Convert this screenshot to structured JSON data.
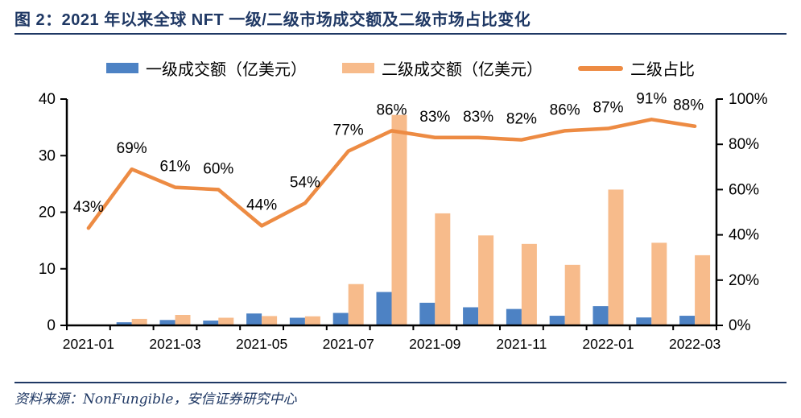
{
  "header": {
    "title": "图 2：2021 年以来全球 NFT 一级/二级市场成交额及二级市场占比变化"
  },
  "legend": {
    "items": [
      {
        "label": "一级成交额（亿美元）",
        "type": "bar",
        "color": "#4D82C4"
      },
      {
        "label": "二级成交额（亿美元）",
        "type": "bar",
        "color": "#F7BB8B"
      },
      {
        "label": "二级占比",
        "type": "line",
        "color": "#ED8B43"
      }
    ]
  },
  "chart_data": {
    "type": "combo-bar-line",
    "title": "",
    "categories": [
      "2021-01",
      "2021-02",
      "2021-03",
      "2021-04",
      "2021-05",
      "2021-06",
      "2021-07",
      "2021-08",
      "2021-09",
      "2021-10",
      "2021-11",
      "2021-12",
      "2022-01",
      "2022-02",
      "2022-03"
    ],
    "x_tick_labels": [
      "2021-01",
      "2021-03",
      "2021-05",
      "2021-07",
      "2021-09",
      "2021-11",
      "2022-01",
      "2022-03"
    ],
    "series": [
      {
        "name": "一级成交额（亿美元）",
        "type": "bar",
        "axis": "left",
        "color": "#4D82C4",
        "values": [
          0.1,
          0.55,
          0.95,
          0.85,
          2.1,
          1.35,
          2.2,
          5.9,
          4.0,
          3.2,
          2.9,
          1.7,
          3.4,
          1.4,
          1.7
        ]
      },
      {
        "name": "二级成交额（亿美元）",
        "type": "bar",
        "axis": "left",
        "color": "#F7BB8B",
        "values": [
          0.08,
          1.15,
          1.85,
          1.35,
          1.65,
          1.6,
          7.3,
          37.2,
          19.8,
          15.9,
          14.4,
          10.7,
          24.0,
          14.6,
          12.4
        ]
      },
      {
        "name": "二级占比",
        "type": "line",
        "axis": "right",
        "color": "#ED8B43",
        "values": [
          43,
          69,
          61,
          60,
          44,
          54,
          77,
          86,
          83,
          83,
          82,
          86,
          87,
          91,
          88
        ],
        "point_labels": [
          "43%",
          "69%",
          "61%",
          "60%",
          "44%",
          "54%",
          "77%",
          "86%",
          "83%",
          "83%",
          "82%",
          "86%",
          "87%",
          "91%",
          "88%"
        ]
      }
    ],
    "left_axis": {
      "min": 0,
      "max": 40,
      "step": 10,
      "ticks": [
        "0",
        "10",
        "20",
        "30",
        "40"
      ]
    },
    "right_axis": {
      "min": 0,
      "max": 100,
      "step": 20,
      "ticks": [
        "0%",
        "20%",
        "40%",
        "60%",
        "80%",
        "100%"
      ]
    },
    "grid": false,
    "legend_position": "top"
  },
  "source": {
    "text": "资料来源：NonFungible，安信证券研究中心"
  },
  "colors": {
    "navy": "#1F3864",
    "axis_line": "#000000",
    "tick_text": "#000000",
    "primary_bar": "#4D82C4",
    "secondary_bar": "#F7BB8B",
    "share_line": "#ED8B43"
  }
}
